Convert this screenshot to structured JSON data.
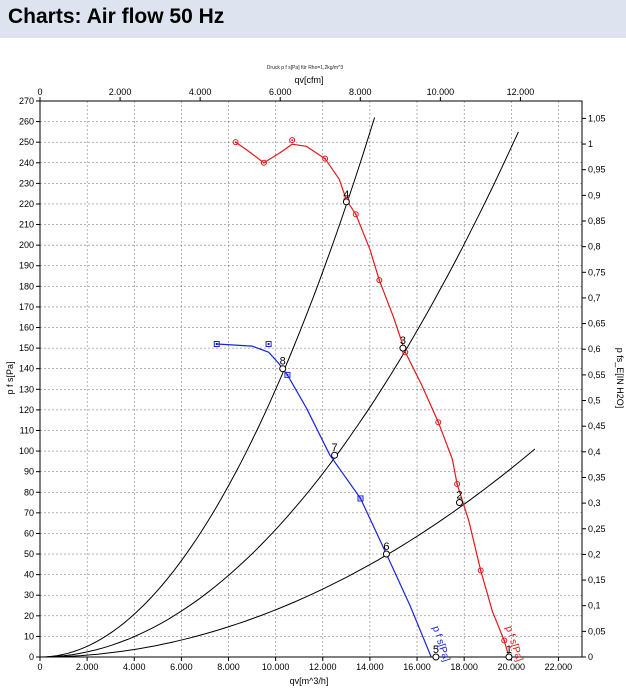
{
  "page": {
    "title": "Charts: Air flow 50 Hz"
  },
  "chart_data": {
    "type": "line",
    "subtitle": "Druck p f s[Pa] für Rho=1,2kg/m^3",
    "x_bottom": {
      "label": "qv[m^3/h]",
      "range": [
        0,
        23000
      ],
      "ticks": [
        0,
        2000,
        4000,
        6000,
        8000,
        10000,
        12000,
        14000,
        16000,
        18000,
        20000,
        22000
      ],
      "tick_labels": [
        "0",
        "2.000",
        "4.000",
        "6.000",
        "8.000",
        "10.000",
        "12.000",
        "14.000",
        "16.000",
        "18.000",
        "20.000",
        "22.000"
      ]
    },
    "x_top": {
      "label": "qv[cfm]",
      "ticks": [
        0,
        2000,
        4000,
        6000,
        8000,
        10000,
        12000
      ],
      "tick_labels": [
        "0",
        "2.000",
        "4.000",
        "6.000",
        "8.000",
        "10.000",
        "12.000"
      ]
    },
    "y_left": {
      "label": "p f s[Pa]",
      "range": [
        0,
        270
      ],
      "ticks": [
        0,
        10,
        20,
        30,
        40,
        50,
        60,
        70,
        80,
        90,
        100,
        110,
        120,
        130,
        140,
        150,
        160,
        170,
        180,
        190,
        200,
        210,
        220,
        230,
        240,
        250,
        260,
        270
      ],
      "tick_labels": [
        "0",
        "10",
        "20",
        "30",
        "40",
        "50",
        "60",
        "70",
        "80",
        "90",
        "100",
        "110",
        "120",
        "130",
        "140",
        "150",
        "160",
        "170",
        "180",
        "190",
        "200",
        "210",
        "220",
        "230",
        "240",
        "250",
        "260",
        "270"
      ]
    },
    "y_right": {
      "label": "p fs_E[IN H2O]",
      "ticks": [
        0,
        0.05,
        0.1,
        0.15,
        0.2,
        0.25,
        0.3,
        0.35,
        0.4,
        0.45,
        0.5,
        0.55,
        0.6,
        0.65,
        0.7,
        0.75,
        0.8,
        0.85,
        0.9,
        0.95,
        1.0,
        1.05
      ],
      "tick_labels": [
        "0",
        "0,05",
        "0,1",
        "0,15",
        "0,2",
        "0,25",
        "0,3",
        "0,35",
        "0,4",
        "0,45",
        "0,5",
        "0,55",
        "0,6",
        "0,65",
        "0,7",
        "0,75",
        "0,8",
        "0,85",
        "0,9",
        "0,95",
        "1",
        "1,05"
      ]
    },
    "grid": true,
    "series": [
      {
        "name": "p f s[Pa]",
        "color": "#e8161b",
        "marker": "circle",
        "x": [
          8300,
          9500,
          10700,
          12100,
          13000,
          13400,
          14400,
          15500,
          16900,
          17700,
          18700,
          19700
        ],
        "y": [
          250,
          240,
          251,
          242,
          222,
          215,
          183,
          148,
          114,
          84,
          42,
          8
        ],
        "curve_x": [
          8300,
          8800,
          9500,
          10200,
          10700,
          11300,
          12100,
          12700,
          13000,
          13400,
          14000,
          14400,
          15000,
          15500,
          16200,
          16900,
          17500,
          17700,
          18200,
          18700,
          19200,
          19700,
          19900
        ],
        "curve_y": [
          250,
          246,
          240,
          245,
          249,
          248,
          242,
          232,
          222,
          215,
          198,
          183,
          165,
          148,
          132,
          114,
          96,
          84,
          66,
          42,
          22,
          8,
          0
        ]
      },
      {
        "name": "p f s[Pa]",
        "color": "#1a24e0",
        "marker": "square",
        "x": [
          7500,
          9700,
          10500,
          13600
        ],
        "y": [
          152,
          152,
          137,
          77
        ],
        "curve_x": [
          7500,
          9000,
          9700,
          10100,
          10500,
          11300,
          12300,
          13600,
          14700,
          15700,
          16600
        ],
        "curve_y": [
          152,
          151,
          148,
          143,
          137,
          121,
          98,
          77,
          50,
          25,
          0
        ]
      }
    ],
    "system_curves": [
      {
        "x_end": 14200,
        "y_end": 262
      },
      {
        "x_end": 20300,
        "y_end": 255
      },
      {
        "x_end": 21000,
        "y_end": 101
      }
    ],
    "operating_points": [
      {
        "label": "4",
        "x": 13000,
        "y": 221
      },
      {
        "label": "3",
        "x": 15400,
        "y": 150
      },
      {
        "label": "2",
        "x": 17800,
        "y": 75
      },
      {
        "label": "1",
        "x": 19900,
        "y": 0
      },
      {
        "label": "8",
        "x": 10300,
        "y": 140
      },
      {
        "label": "7",
        "x": 12500,
        "y": 98
      },
      {
        "label": "6",
        "x": 14700,
        "y": 50
      },
      {
        "label": "5",
        "x": 16800,
        "y": 0
      }
    ],
    "curve_labels": [
      {
        "text": "p f s[Pa]",
        "color": "#1a24e0",
        "x": 16900,
        "y": 6
      },
      {
        "text": "p f s[Pa]",
        "color": "#e8161b",
        "x": 20000,
        "y": 6
      }
    ]
  }
}
